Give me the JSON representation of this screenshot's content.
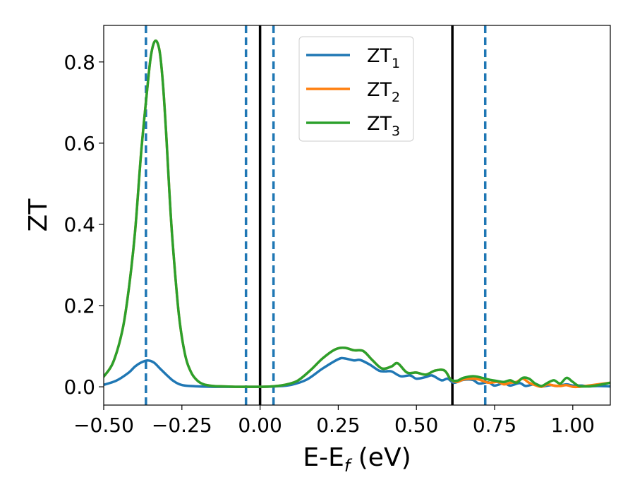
{
  "chart_data": {
    "type": "line",
    "xlabel": "E-E",
    "xlabel_sub": "f",
    "xlabel_unit": " (eV)",
    "ylabel": "ZT",
    "xlim": [
      -0.5,
      1.12
    ],
    "ylim": [
      -0.045,
      0.89
    ],
    "grid": false,
    "legend_position": "top-center",
    "x_ticks": [
      -0.5,
      -0.25,
      0.0,
      0.25,
      0.5,
      0.75,
      1.0
    ],
    "x_tick_labels": [
      "−0.50",
      "−0.25",
      "0.00",
      "0.25",
      "0.50",
      "0.75",
      "1.00"
    ],
    "y_ticks": [
      0.0,
      0.2,
      0.4,
      0.6,
      0.8
    ],
    "y_tick_labels": [
      "0.0",
      "0.2",
      "0.4",
      "0.6",
      "0.8"
    ],
    "vertical_lines": [
      {
        "x": -0.365,
        "style": "dashed",
        "color": "#1f77b4"
      },
      {
        "x": -0.045,
        "style": "dashed",
        "color": "#1f77b4"
      },
      {
        "x": 0.0,
        "style": "solid",
        "color": "#000000"
      },
      {
        "x": 0.043,
        "style": "dashed",
        "color": "#1f77b4"
      },
      {
        "x": 0.615,
        "style": "solid",
        "color": "#000000"
      },
      {
        "x": 0.72,
        "style": "dashed",
        "color": "#1f77b4"
      }
    ],
    "series": [
      {
        "name": "ZT",
        "name_sub": "1",
        "color": "#1f77b4",
        "x": [
          -0.5,
          -0.46,
          -0.42,
          -0.4,
          -0.38,
          -0.36,
          -0.34,
          -0.32,
          -0.3,
          -0.28,
          -0.26,
          -0.24,
          -0.22,
          -0.2,
          -0.15,
          -0.1,
          -0.05,
          0.0,
          0.05,
          0.1,
          0.15,
          0.2,
          0.25,
          0.27,
          0.3,
          0.32,
          0.35,
          0.38,
          0.4,
          0.42,
          0.45,
          0.48,
          0.5,
          0.53,
          0.55,
          0.58,
          0.6,
          0.62,
          0.65,
          0.68,
          0.7,
          0.73,
          0.75,
          0.78,
          0.8,
          0.83,
          0.85,
          0.88,
          0.9,
          0.93,
          0.95,
          0.98,
          1.0,
          1.03,
          1.05,
          1.08,
          1.12
        ],
        "y": [
          0.005,
          0.015,
          0.035,
          0.05,
          0.06,
          0.065,
          0.06,
          0.045,
          0.03,
          0.016,
          0.007,
          0.003,
          0.002,
          0.001,
          0.0,
          0.0,
          0.0,
          0.0,
          0.001,
          0.005,
          0.018,
          0.045,
          0.068,
          0.07,
          0.065,
          0.066,
          0.055,
          0.04,
          0.038,
          0.038,
          0.026,
          0.028,
          0.02,
          0.024,
          0.028,
          0.016,
          0.02,
          0.01,
          0.017,
          0.017,
          0.008,
          0.011,
          0.003,
          0.009,
          0.003,
          0.009,
          0.002,
          0.007,
          0.001,
          0.004,
          0.002,
          0.006,
          0.003,
          0.003,
          0.001,
          0.002,
          0.001
        ]
      },
      {
        "name": "ZT",
        "name_sub": "2",
        "color": "#ff7f0e",
        "x": [
          -0.5,
          -0.47,
          -0.44,
          -0.42,
          -0.4,
          -0.38,
          -0.36,
          -0.35,
          -0.34,
          -0.33,
          -0.32,
          -0.31,
          -0.3,
          -0.29,
          -0.28,
          -0.26,
          -0.24,
          -0.22,
          -0.2,
          -0.18,
          -0.15,
          -0.12,
          -0.08,
          -0.04,
          0.0,
          0.04,
          0.08,
          0.12,
          0.16,
          0.2,
          0.24,
          0.27,
          0.3,
          0.33,
          0.36,
          0.39,
          0.42,
          0.44,
          0.47,
          0.5,
          0.53,
          0.56,
          0.59,
          0.61,
          0.63,
          0.65,
          0.68,
          0.7,
          0.73,
          0.76,
          0.78,
          0.8,
          0.82,
          0.84,
          0.86,
          0.88,
          0.9,
          0.92,
          0.94,
          0.96,
          0.98,
          1.0,
          1.02,
          1.05,
          1.08,
          1.12
        ],
        "y": [
          0.025,
          0.06,
          0.14,
          0.24,
          0.38,
          0.58,
          0.74,
          0.81,
          0.846,
          0.85,
          0.82,
          0.74,
          0.62,
          0.48,
          0.36,
          0.18,
          0.08,
          0.035,
          0.015,
          0.006,
          0.002,
          0.001,
          0.0,
          0.0,
          0.0,
          0.001,
          0.005,
          0.015,
          0.04,
          0.07,
          0.092,
          0.096,
          0.09,
          0.088,
          0.065,
          0.045,
          0.05,
          0.058,
          0.035,
          0.035,
          0.03,
          0.04,
          0.04,
          0.018,
          0.012,
          0.018,
          0.02,
          0.018,
          0.01,
          0.012,
          0.006,
          0.01,
          0.012,
          0.02,
          0.01,
          0.004,
          0.0,
          0.006,
          0.003,
          0.002,
          0.004,
          0.0,
          0.0,
          0.003,
          0.006,
          0.01
        ]
      },
      {
        "name": "ZT",
        "name_sub": "3",
        "color": "#2ca02c",
        "x": [
          -0.5,
          -0.47,
          -0.44,
          -0.42,
          -0.4,
          -0.38,
          -0.36,
          -0.35,
          -0.34,
          -0.33,
          -0.32,
          -0.31,
          -0.3,
          -0.29,
          -0.28,
          -0.26,
          -0.24,
          -0.22,
          -0.2,
          -0.18,
          -0.15,
          -0.12,
          -0.08,
          -0.04,
          0.0,
          0.04,
          0.08,
          0.12,
          0.16,
          0.2,
          0.24,
          0.27,
          0.3,
          0.33,
          0.36,
          0.39,
          0.42,
          0.44,
          0.47,
          0.5,
          0.53,
          0.56,
          0.59,
          0.61,
          0.63,
          0.65,
          0.68,
          0.7,
          0.73,
          0.76,
          0.78,
          0.8,
          0.82,
          0.84,
          0.86,
          0.88,
          0.9,
          0.92,
          0.94,
          0.96,
          0.98,
          1.0,
          1.02,
          1.05,
          1.08,
          1.12
        ],
        "y": [
          0.025,
          0.06,
          0.14,
          0.24,
          0.38,
          0.58,
          0.74,
          0.81,
          0.846,
          0.85,
          0.82,
          0.74,
          0.62,
          0.48,
          0.36,
          0.18,
          0.08,
          0.035,
          0.015,
          0.006,
          0.002,
          0.001,
          0.0,
          0.0,
          0.0,
          0.001,
          0.005,
          0.015,
          0.04,
          0.07,
          0.092,
          0.096,
          0.09,
          0.088,
          0.065,
          0.045,
          0.05,
          0.058,
          0.035,
          0.035,
          0.03,
          0.04,
          0.04,
          0.018,
          0.015,
          0.022,
          0.026,
          0.024,
          0.018,
          0.014,
          0.012,
          0.016,
          0.01,
          0.022,
          0.02,
          0.008,
          0.002,
          0.01,
          0.016,
          0.008,
          0.022,
          0.012,
          0.002,
          0.001,
          0.004,
          0.01
        ]
      }
    ]
  }
}
